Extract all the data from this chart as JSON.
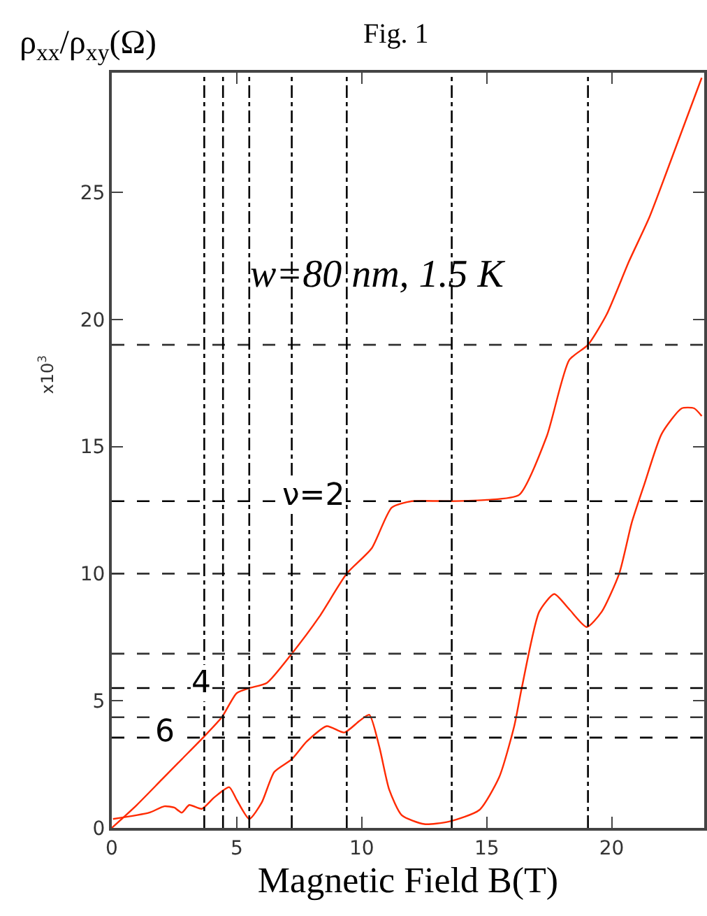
{
  "chart_data": {
    "type": "line",
    "title": "Fig. 1",
    "xlabel": "Magnetic Field B(T)",
    "ylabel": "ρ$_{xx}$/ρ$_{xy}$(Ω)",
    "annotations": [
      "x10$^{3}$",
      "w=80 nm, 1.5 K",
      {
        "text": "ν=2",
        "x": 8.1,
        "y": 12.85
      },
      {
        "text": "4",
        "x": 3.6,
        "y": 5.5
      },
      {
        "text": "6",
        "x": 2.1,
        "y": 3.55
      }
    ],
    "series": [
      {
        "color": "#ff2a00",
        "x": [
          0,
          1,
          2,
          2.8,
          3.7,
          4.4,
          5,
          5.5,
          6.2,
          7.2,
          8.3,
          9.4,
          10.4,
          11.2,
          12,
          13.5,
          15,
          16.3,
          17.4,
          18.3,
          19.05,
          19.8,
          20.7,
          21.5,
          22.5,
          23.6
        ],
        "values": [
          0,
          0.9,
          1.9,
          2.7,
          3.6,
          4.35,
          5.3,
          5.5,
          5.7,
          6.85,
          8.3,
          10,
          11,
          12.6,
          12.85,
          12.85,
          12.9,
          13.1,
          15.4,
          18.4,
          19,
          20.2,
          22.3,
          24,
          26.6,
          29.5
        ]
      },
      {
        "color": "#ff2a00",
        "x": [
          0.05,
          1.5,
          2.1,
          2.5,
          2.8,
          3.1,
          3.6,
          4.1,
          4.7,
          5,
          5.5,
          6,
          6.5,
          7.2,
          7.8,
          8.6,
          9.3,
          9.9,
          10.3,
          10.7,
          11.1,
          11.6,
          12.5,
          13.5,
          14.7,
          15.5,
          16.1,
          16.4,
          17.1,
          17.7,
          18.3,
          19,
          19.6,
          20.3,
          20.8,
          21.3,
          22,
          22.8,
          23.3,
          23.6
        ],
        "values": [
          0.35,
          0.6,
          0.85,
          0.8,
          0.6,
          0.9,
          0.75,
          1.2,
          1.6,
          1.1,
          0.35,
          1,
          2.2,
          2.7,
          3.4,
          4,
          3.75,
          4.2,
          4.45,
          3.2,
          1.5,
          0.5,
          0.15,
          0.25,
          0.7,
          2,
          4,
          5.5,
          8.5,
          9.2,
          8.6,
          7.9,
          8.5,
          10,
          12,
          13.5,
          15.5,
          16.5,
          16.5,
          16.2
        ]
      }
    ],
    "xlim": [
      0,
      23.7
    ],
    "xticks": [
      0,
      5,
      10,
      15,
      20
    ],
    "ylim": [
      0,
      29.7
    ],
    "yticks": [
      0,
      5,
      10,
      15,
      20,
      25
    ],
    "ref_lines": [
      {
        "axis": "y",
        "value": 19,
        "color": "#333333",
        "line_style": "dashed"
      },
      {
        "axis": "y",
        "value": 12.85,
        "color": "#000000",
        "line_style": "dashed"
      },
      {
        "axis": "y",
        "value": 10,
        "color": "#333333",
        "line_style": "dashed"
      },
      {
        "axis": "y",
        "value": 6.85,
        "color": "#333333",
        "line_style": "dashed"
      },
      {
        "axis": "y",
        "value": 5.5,
        "color": "#000000",
        "line_style": "dashed"
      },
      {
        "axis": "y",
        "value": 4.35,
        "color": "#333333",
        "line_style": "dashed"
      },
      {
        "axis": "y",
        "value": 3.55,
        "color": "#000000",
        "line_style": "dashed"
      },
      {
        "axis": "x",
        "value": 3.7,
        "color": "#000000",
        "line_style": "dashdot"
      },
      {
        "axis": "x",
        "value": 4.45,
        "color": "#000000",
        "line_style": "dashdot"
      },
      {
        "axis": "x",
        "value": 5.5,
        "color": "#000000",
        "line_style": "dashdot"
      },
      {
        "axis": "x",
        "value": 7.2,
        "color": "#000000",
        "line_style": "dashdot"
      },
      {
        "axis": "x",
        "value": 9.4,
        "color": "#000000",
        "line_style": "dashdot"
      },
      {
        "axis": "x",
        "value": 13.6,
        "color": "#000000",
        "line_style": "dashdot"
      },
      {
        "axis": "x",
        "value": 19.05,
        "color": "#000000",
        "line_style": "dashdot"
      }
    ],
    "grid": false,
    "marker": "none",
    "line_style": "solid"
  }
}
